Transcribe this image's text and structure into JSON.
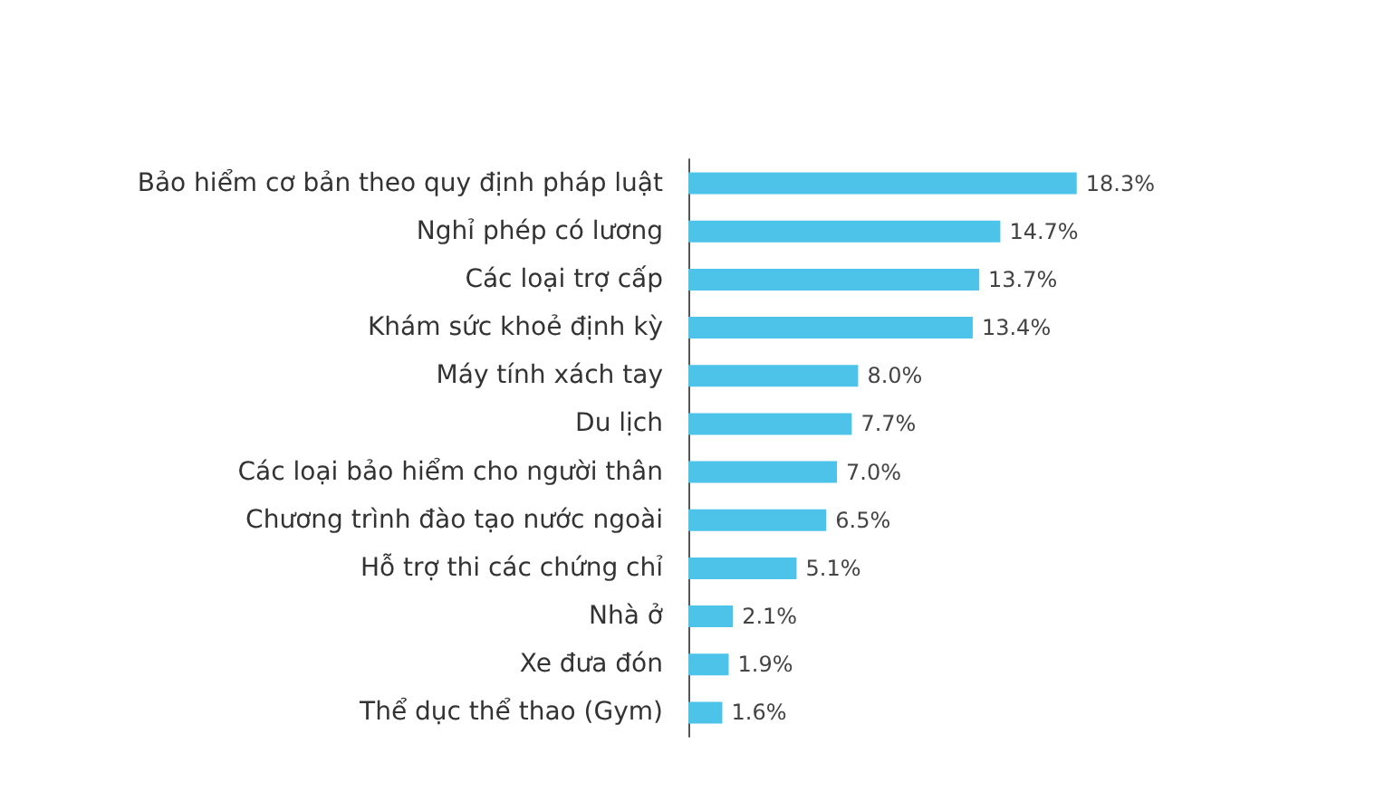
{
  "chart_data": {
    "type": "bar",
    "orientation": "horizontal",
    "color": "#4dc3ea",
    "categories": [
      "Bảo hiểm cơ bản theo quy định pháp luật",
      "Nghỉ phép có lương",
      "Các loại trợ cấp",
      "Khám sức khoẻ định kỳ",
      "Máy tính xách tay",
      "Du lịch",
      "Các loại bảo hiểm cho người thân",
      "Chương trình đào tạo nước ngoài",
      "Hỗ trợ thi các chứng chỉ",
      "Nhà ở",
      "Xe đưa đón",
      "Thể dục thể thao (Gym)"
    ],
    "values": [
      18.3,
      14.7,
      13.7,
      13.4,
      8.0,
      7.7,
      7.0,
      6.5,
      5.1,
      2.1,
      1.9,
      1.6
    ],
    "value_labels": [
      "18.3%",
      "14.7%",
      "13.7%",
      "13.4%",
      "8.0%",
      "7.7%",
      "7.0%",
      "6.5%",
      "5.1%",
      "2.1%",
      "1.9%",
      "1.6%"
    ]
  }
}
